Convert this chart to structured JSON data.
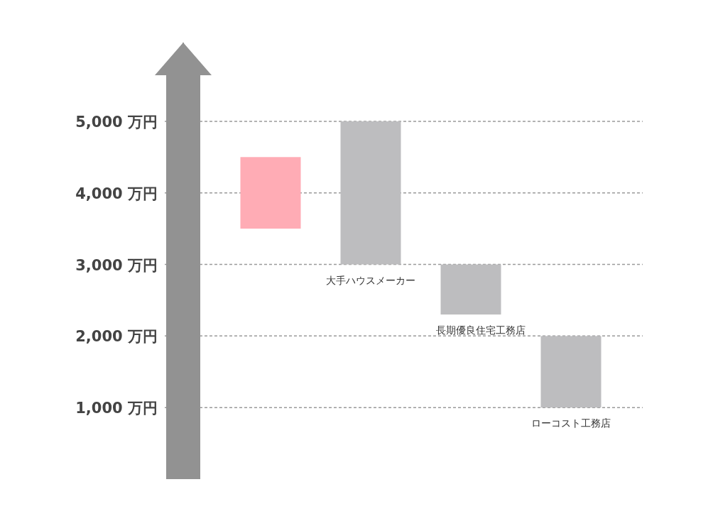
{
  "chart_data": {
    "type": "bar",
    "categories": [
      null,
      "大手ハウスメーカー",
      "長期優良住宅工務店",
      "ローコスト工務店"
    ],
    "base": [
      3500,
      3000,
      2300,
      1000
    ],
    "values": [
      1000,
      2000,
      700,
      1000
    ],
    "colors": [
      "#ffacb5",
      "#bdbdbf",
      "#bdbdbf",
      "#bdbdbf"
    ],
    "ylim": [
      0,
      6100
    ],
    "yticks": [
      {
        "value": 1000,
        "label": "1,000 万円"
      },
      {
        "value": 2000,
        "label": "2,000 万円"
      },
      {
        "value": 3000,
        "label": "3,000 万円"
      },
      {
        "value": 4000,
        "label": "4,000 万円"
      },
      {
        "value": 5000,
        "label": "5,000 万円"
      }
    ],
    "grid": "y"
  }
}
